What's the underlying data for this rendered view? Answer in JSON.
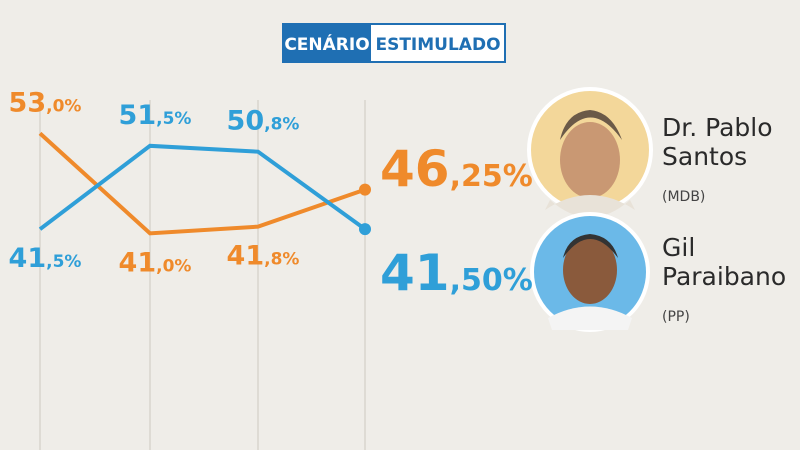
{
  "chart_data": {
    "type": "line",
    "header": [
      "CENÁRIO",
      "ESTIMULADO"
    ],
    "categories": [
      null,
      null,
      null,
      null
    ],
    "ylim": [
      15,
      57
    ],
    "series": [
      {
        "name": "Dr. Pablo Santos",
        "party": "(MDB)",
        "color": "#ef8a2b",
        "values": [
          53.0,
          41.0,
          41.8,
          46.25
        ],
        "value_labels": [
          "53,0%",
          "41,0%",
          "41,8%",
          "46,25%"
        ]
      },
      {
        "name": "Gil Paraibano",
        "party": "(PP)",
        "color": "#2f9fd8",
        "values": [
          41.5,
          51.5,
          50.8,
          41.5
        ],
        "value_labels": [
          "41,5%",
          "51,5%",
          "50,8%",
          "41,50%"
        ]
      }
    ]
  }
}
